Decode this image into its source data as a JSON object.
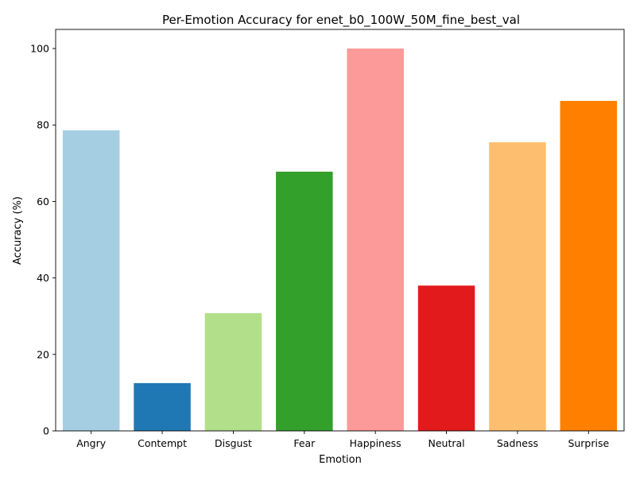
{
  "chart_data": {
    "type": "bar",
    "title": "Per-Emotion Accuracy for enet_b0_100W_50M_fine_best_val",
    "xlabel": "Emotion",
    "ylabel": "Accuracy (%)",
    "ylim": [
      0,
      105
    ],
    "yticks": [
      0,
      20,
      40,
      60,
      80,
      100
    ],
    "grid": false,
    "categories": [
      "Angry",
      "Contempt",
      "Disgust",
      "Fear",
      "Happiness",
      "Neutral",
      "Sadness",
      "Surprise"
    ],
    "values": [
      78.6,
      12.5,
      30.8,
      67.8,
      100.0,
      38.0,
      75.5,
      86.3
    ],
    "colors": [
      "#a6cee3",
      "#1f78b4",
      "#b2df8a",
      "#33a02c",
      "#fb9a99",
      "#e31a1c",
      "#fdbf6f",
      "#ff7f00"
    ]
  }
}
